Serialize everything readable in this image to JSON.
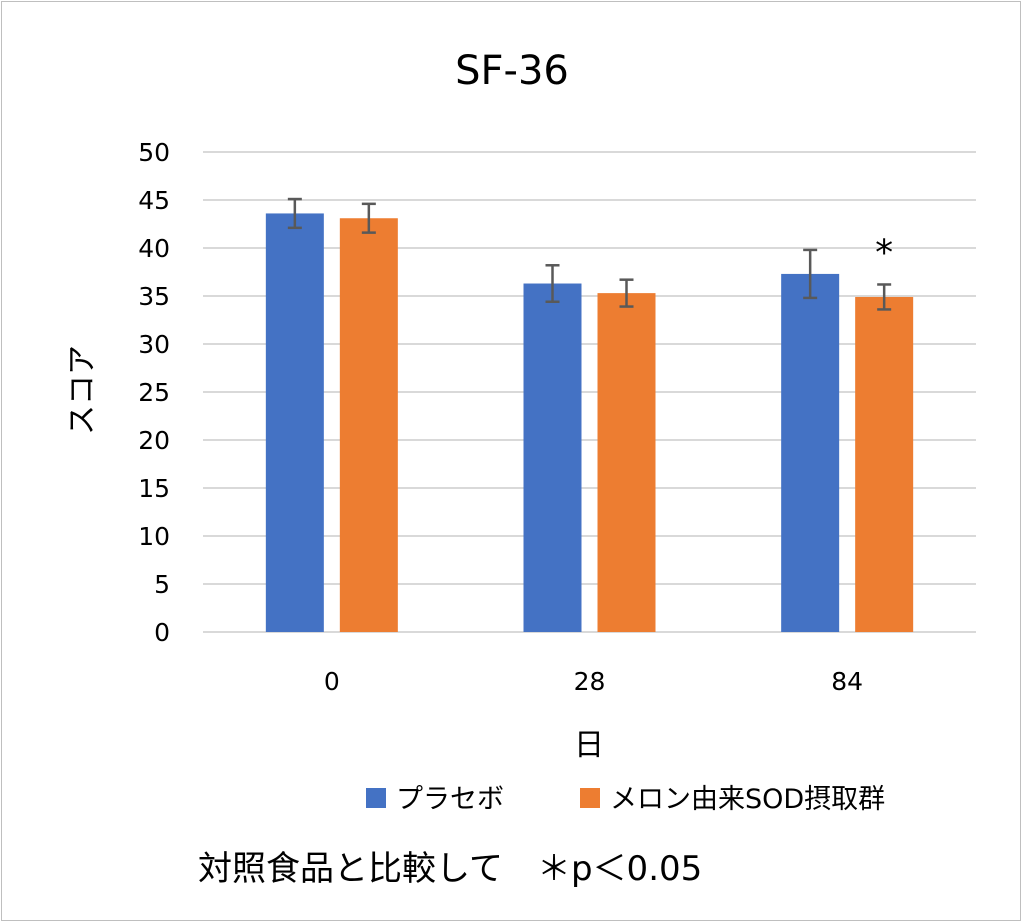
{
  "chart_data": {
    "type": "bar",
    "title": "SF-36",
    "xlabel": "日",
    "ylabel": "スコア",
    "categories": [
      "0",
      "28",
      "84"
    ],
    "ylim": [
      0,
      50
    ],
    "yticks": [
      "0",
      "5",
      "10",
      "15",
      "20",
      "25",
      "30",
      "35",
      "40",
      "45",
      "50"
    ],
    "grid": true,
    "legend_position": "bottom-right",
    "series": [
      {
        "name": "プラセボ",
        "color": "#4472C4",
        "values": [
          43.6,
          36.3,
          37.3
        ],
        "errors": [
          1.5,
          1.9,
          2.5
        ]
      },
      {
        "name": "メロン由来SOD摂取群",
        "color": "#ED7D31",
        "values": [
          43.1,
          35.3,
          34.9
        ],
        "errors": [
          1.5,
          1.4,
          1.3
        ]
      }
    ],
    "annotations": [
      {
        "text": "*",
        "category": "84"
      }
    ],
    "footnote": "対照食品と比較して　＊p＜0.05"
  }
}
